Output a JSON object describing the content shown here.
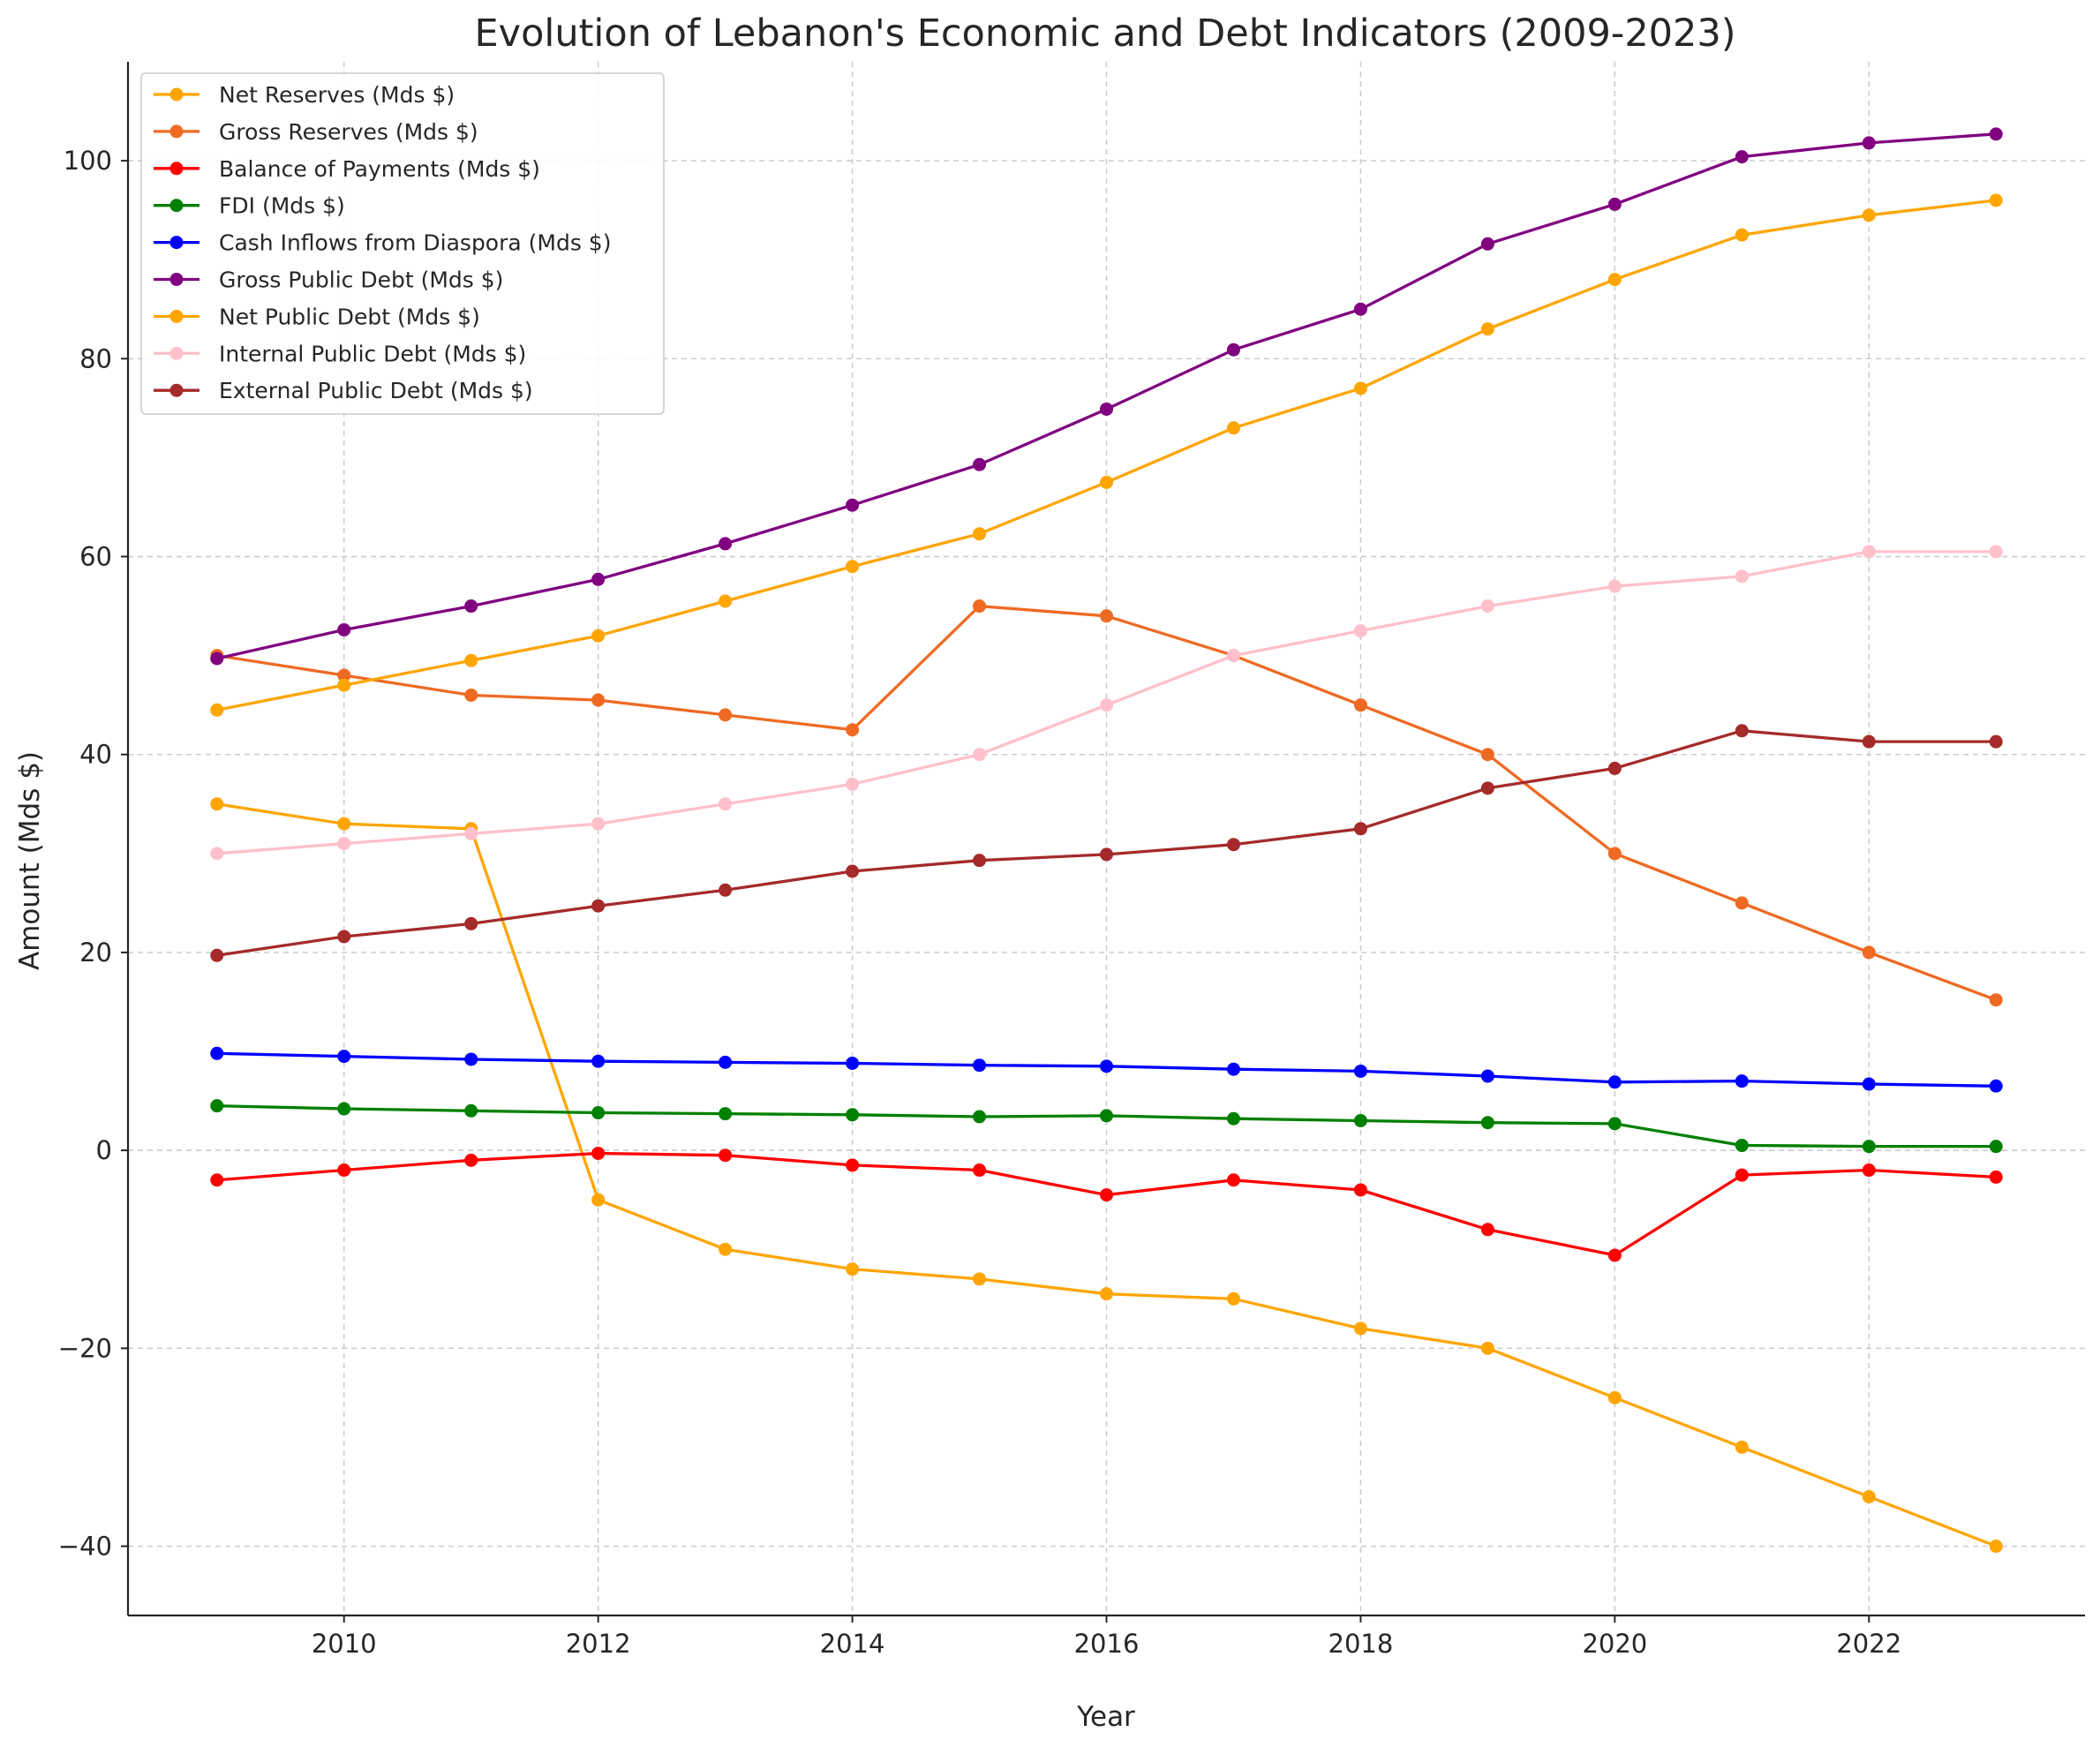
{
  "chart_data": {
    "type": "line",
    "title": "Evolution of Lebanon's Economic and Debt Indicators (2009-2023)",
    "xlabel": "Year",
    "ylabel": "Amount (Mds $)",
    "xlim": [
      2008.3,
      2023.7
    ],
    "ylim": [
      -47,
      110
    ],
    "xticks": [
      2010,
      2012,
      2014,
      2016,
      2018,
      2020,
      2022
    ],
    "xtick_labels": [
      "2010",
      "2012",
      "2014",
      "2016",
      "2018",
      "2020",
      "2022"
    ],
    "yticks": [
      -40,
      -20,
      0,
      20,
      40,
      60,
      80,
      100
    ],
    "ytick_labels": [
      "−40",
      "−20",
      "0",
      "20",
      "40",
      "60",
      "80",
      "100"
    ],
    "grid": true,
    "legend_position": "top-left",
    "x": [
      2009,
      2010,
      2011,
      2012,
      2013,
      2014,
      2015,
      2016,
      2017,
      2018,
      2019,
      2020,
      2021,
      2022,
      2023
    ],
    "series": [
      {
        "name": "Net Reserves (Mds $)",
        "color": "#FFA500",
        "values": [
          35,
          33,
          32.5,
          -5,
          -10,
          -12,
          -13,
          -14.5,
          -15,
          -18,
          -20,
          -25,
          -30,
          -35,
          -40
        ]
      },
      {
        "name": "Gross Reserves (Mds $)",
        "color": "#EE6A22",
        "values": [
          50,
          48,
          46,
          45.5,
          44,
          42.5,
          55,
          54,
          50,
          45,
          40,
          30,
          25,
          20,
          15.2
        ]
      },
      {
        "name": "Balance of Payments (Mds $)",
        "color": "#FF0000",
        "values": [
          -3,
          -2,
          -1,
          -0.3,
          -0.5,
          -1.5,
          -2,
          -4.5,
          -3,
          -4,
          -8,
          -10.6,
          -2.5,
          -2,
          -2.7
        ]
      },
      {
        "name": "FDI (Mds $)",
        "color": "#008000",
        "values": [
          4.5,
          4.2,
          4.0,
          3.8,
          3.7,
          3.6,
          3.4,
          3.5,
          3.2,
          3.0,
          2.8,
          2.7,
          0.5,
          0.4,
          0.4
        ]
      },
      {
        "name": "Cash Inflows from Diaspora (Mds $)",
        "color": "#0000FF",
        "values": [
          9.8,
          9.5,
          9.2,
          9.0,
          8.9,
          8.8,
          8.6,
          8.5,
          8.2,
          8.0,
          7.5,
          6.9,
          7.0,
          6.7,
          6.5
        ]
      },
      {
        "name": "Gross Public Debt (Mds $)",
        "color": "#800080",
        "values": [
          49.7,
          52.6,
          55.0,
          57.7,
          61.3,
          65.2,
          69.3,
          74.9,
          80.9,
          85.0,
          91.6,
          95.6,
          100.4,
          101.8,
          102.7
        ]
      },
      {
        "name": "Net Public Debt (Mds $)",
        "color": "#FFA500",
        "values": [
          44.5,
          47,
          49.5,
          52,
          55.5,
          59,
          62.3,
          67.5,
          73,
          77,
          83,
          88,
          92.5,
          94.5,
          96
        ]
      },
      {
        "name": "Internal Public Debt (Mds $)",
        "color": "#FFC0CB",
        "values": [
          30,
          31,
          32,
          33,
          35,
          37,
          40,
          45,
          50,
          52.5,
          55,
          57,
          58,
          60.5,
          60.5
        ]
      },
      {
        "name": "External Public Debt (Mds $)",
        "color": "#A52A2A",
        "values": [
          19.7,
          21.6,
          22.9,
          24.7,
          26.3,
          28.2,
          29.3,
          29.9,
          30.9,
          32.5,
          36.6,
          38.6,
          42.4,
          41.3,
          41.3
        ]
      }
    ]
  }
}
